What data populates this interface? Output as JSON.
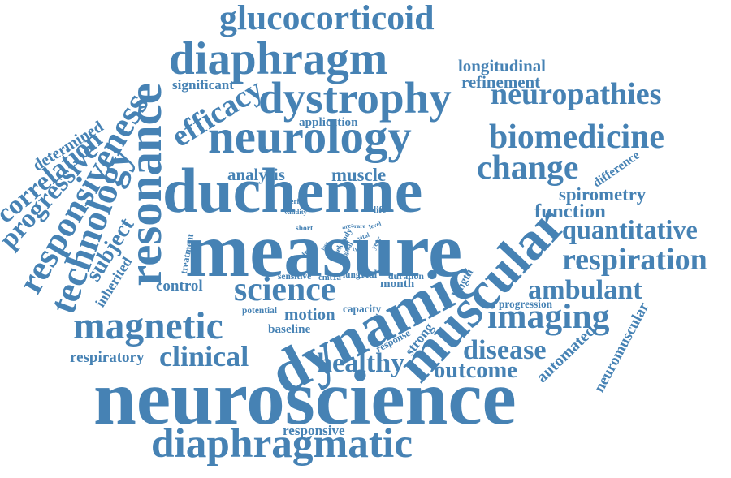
{
  "color": "#4682b4",
  "words": [
    {
      "text": "neuroscience"
    },
    {
      "text": "measure"
    },
    {
      "text": "duchenne"
    },
    {
      "text": "neurology"
    },
    {
      "text": "dynamic"
    },
    {
      "text": "diaphragm"
    },
    {
      "text": "dystrophy"
    },
    {
      "text": "glucocorticoid"
    },
    {
      "text": "diaphragmatic"
    },
    {
      "text": "muscular"
    },
    {
      "text": "resonance"
    },
    {
      "text": "magnetic"
    },
    {
      "text": "science"
    },
    {
      "text": "biomedicine"
    },
    {
      "text": "neuropathies"
    },
    {
      "text": "change"
    },
    {
      "text": "imaging"
    },
    {
      "text": "responsiveness"
    },
    {
      "text": "technology"
    },
    {
      "text": "quantitative"
    },
    {
      "text": "respiration"
    },
    {
      "text": "ambulant"
    },
    {
      "text": "disease"
    },
    {
      "text": "outcome"
    },
    {
      "text": "clinical"
    },
    {
      "text": "healthy"
    },
    {
      "text": "function"
    },
    {
      "text": "spirometry"
    },
    {
      "text": "longitudinal"
    },
    {
      "text": "refinement"
    },
    {
      "text": "efficacy"
    },
    {
      "text": "significant"
    },
    {
      "text": "correlation"
    },
    {
      "text": "progressive"
    },
    {
      "text": "motion"
    },
    {
      "text": "muscle"
    },
    {
      "text": "analysis"
    },
    {
      "text": "respiratory"
    },
    {
      "text": "control"
    },
    {
      "text": "subject"
    },
    {
      "text": "inherited"
    },
    {
      "text": "automated"
    },
    {
      "text": "neuromuscular"
    },
    {
      "text": "determined"
    },
    {
      "text": "application"
    },
    {
      "text": "responsive"
    },
    {
      "text": "baseline"
    },
    {
      "text": "month"
    },
    {
      "text": "trial"
    },
    {
      "text": "progression"
    },
    {
      "text": "difference"
    },
    {
      "text": "duration"
    },
    {
      "text": "lung"
    },
    {
      "text": "potential"
    },
    {
      "text": "capacity"
    },
    {
      "text": "response"
    },
    {
      "text": "strong"
    },
    {
      "text": "sensitive"
    },
    {
      "text": "cmt1a"
    },
    {
      "text": "life"
    },
    {
      "text": "period"
    },
    {
      "text": "validity"
    },
    {
      "text": "treatment"
    },
    {
      "text": "short"
    },
    {
      "text": "length"
    },
    {
      "text": "area"
    },
    {
      "text": "rare"
    },
    {
      "text": "level"
    },
    {
      "text": "vital"
    },
    {
      "text": "type"
    },
    {
      "text": "body"
    },
    {
      "text": "year"
    },
    {
      "text": "weekly"
    },
    {
      "text": "signal"
    },
    {
      "text": "drug"
    },
    {
      "text": "loss"
    }
  ]
}
